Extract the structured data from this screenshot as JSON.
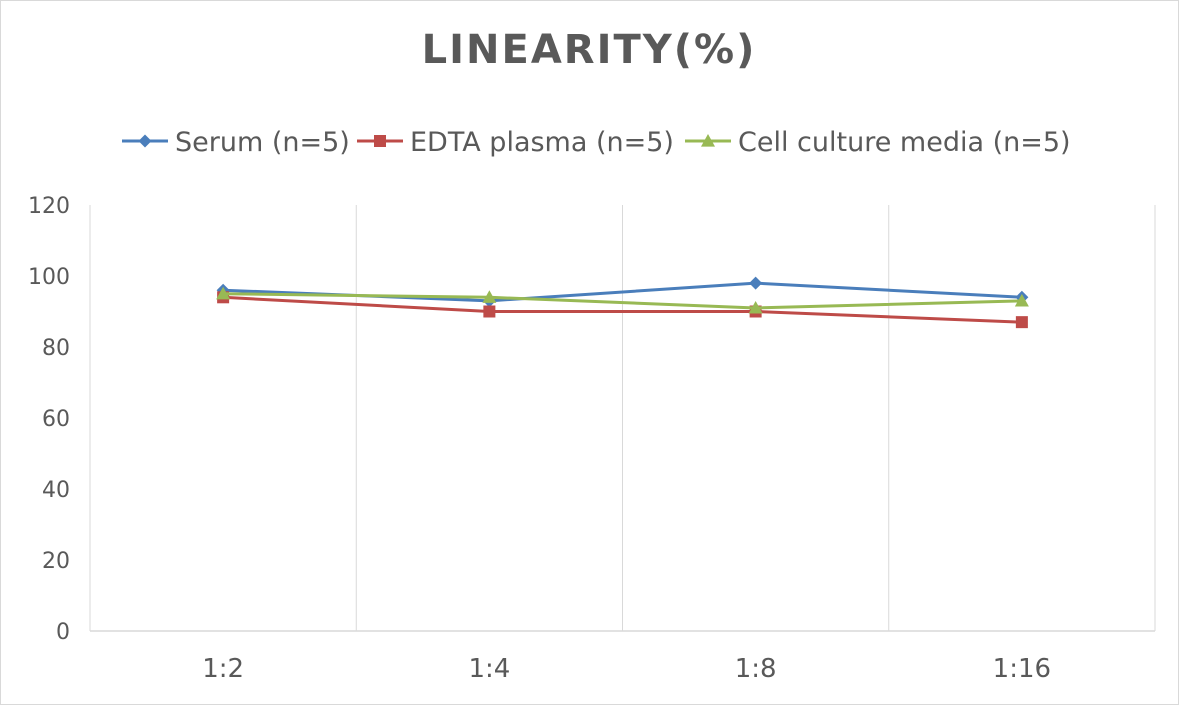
{
  "chart_data": {
    "type": "line",
    "title": "LINEARITY(%)",
    "categories": [
      "1:2",
      "1:4",
      "1:8",
      "1:16"
    ],
    "ylim": [
      0,
      120
    ],
    "yticks": [
      0,
      20,
      40,
      60,
      80,
      100,
      120
    ],
    "grid": "vertical",
    "legend_position": "top",
    "series": [
      {
        "name": "Serum (n=5)",
        "values": [
          96,
          93,
          98,
          94
        ],
        "color": "#4a7ebb",
        "marker": "diamond"
      },
      {
        "name": "EDTA plasma (n=5)",
        "values": [
          94,
          90,
          90,
          87
        ],
        "color": "#be4b48",
        "marker": "square"
      },
      {
        "name": "Cell culture media (n=5)",
        "values": [
          95,
          94,
          91,
          93
        ],
        "color": "#98b954",
        "marker": "triangle"
      }
    ]
  }
}
